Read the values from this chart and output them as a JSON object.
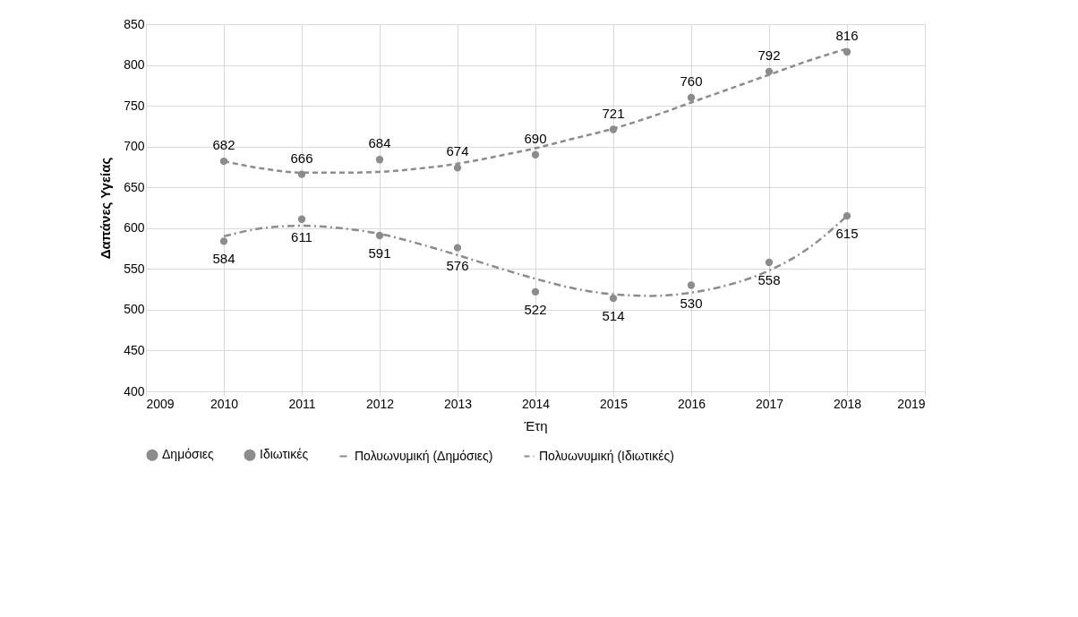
{
  "chart_data": {
    "type": "scatter",
    "xlabel": "Έτη",
    "ylabel": "Δαπάνες Υγείας",
    "xlim": [
      2009,
      2019
    ],
    "xticks": [
      2009,
      2010,
      2011,
      2012,
      2013,
      2014,
      2015,
      2016,
      2017,
      2018,
      2019
    ],
    "ylim": [
      400,
      850
    ],
    "yticks": [
      400,
      450,
      500,
      550,
      600,
      650,
      700,
      750,
      800,
      850
    ],
    "grid": true,
    "legend": "bottom",
    "series": [
      {
        "name": "Δημόσιες",
        "marker": "circle",
        "color": "#8c8c8c",
        "x": [
          2010,
          2011,
          2012,
          2013,
          2014,
          2015,
          2016,
          2017,
          2018
        ],
        "values": [
          584,
          611,
          591,
          576,
          522,
          514,
          530,
          558,
          615
        ],
        "value_labels": [
          "584",
          "611",
          "591",
          "576",
          "522",
          "514",
          "530",
          "558",
          "615"
        ]
      },
      {
        "name": "Ιδιωτικές",
        "marker": "circle",
        "color": "#8c8c8c",
        "x": [
          2010,
          2011,
          2012,
          2013,
          2014,
          2015,
          2016,
          2017,
          2018
        ],
        "values": [
          682,
          666,
          684,
          674,
          690,
          721,
          760,
          792,
          816
        ],
        "value_labels": [
          "682",
          "666",
          "684",
          "674",
          "690",
          "721",
          "760",
          "792",
          "816"
        ]
      },
      {
        "name": "Πολυωνυμική (Δημόσιες)",
        "type": "line",
        "line_style": "dashdot",
        "color": "#8c8c8c",
        "x": [
          2010,
          2010.5,
          2011,
          2011.5,
          2012,
          2012.5,
          2013,
          2013.5,
          2014,
          2014.5,
          2015,
          2015.5,
          2016,
          2016.5,
          2017,
          2017.5,
          2018
        ],
        "values": [
          590,
          600,
          603,
          600,
          593,
          581,
          567,
          552,
          538,
          526,
          519,
          517,
          521,
          531,
          548,
          575,
          615
        ]
      },
      {
        "name": "Πολυωνυμική (Ιδιωτικές)",
        "type": "line",
        "line_style": "dashed",
        "color": "#8c8c8c",
        "x": [
          2010,
          2010.5,
          2011,
          2011.5,
          2012,
          2012.5,
          2013,
          2013.5,
          2014,
          2014.5,
          2015,
          2015.5,
          2016,
          2016.5,
          2017,
          2017.5,
          2018
        ],
        "values": [
          682,
          673,
          668,
          668,
          669,
          673,
          679,
          688,
          698,
          710,
          722,
          737,
          754,
          771,
          788,
          805,
          820
        ]
      }
    ]
  }
}
